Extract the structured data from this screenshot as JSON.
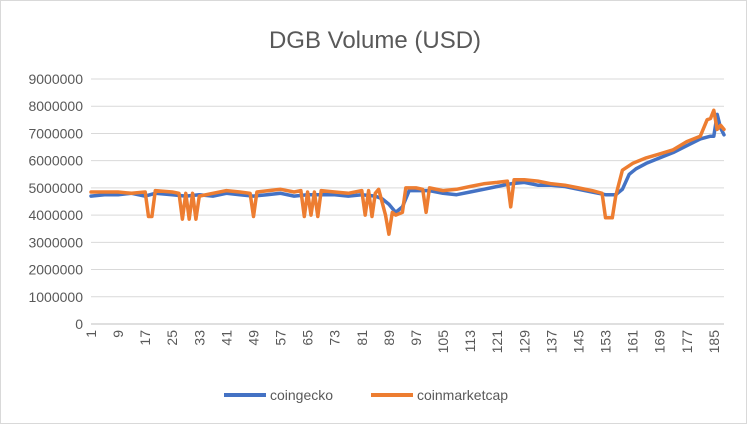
{
  "chart_data": {
    "type": "line",
    "title": "DGB Volume (USD)",
    "xlabel": "",
    "ylabel": "",
    "ylim": [
      0,
      9000000
    ],
    "y_ticks": [
      0,
      1000000,
      2000000,
      3000000,
      4000000,
      5000000,
      6000000,
      7000000,
      8000000,
      9000000
    ],
    "y_tick_labels": [
      "0",
      "1000000",
      "2000000",
      "3000000",
      "4000000",
      "5000000",
      "6000000",
      "7000000",
      "8000000",
      "9000000"
    ],
    "x_range": [
      1,
      188
    ],
    "x_ticks": [
      1,
      9,
      17,
      25,
      33,
      41,
      49,
      57,
      65,
      73,
      81,
      89,
      97,
      105,
      113,
      121,
      129,
      137,
      145,
      153,
      161,
      169,
      177,
      185
    ],
    "x_tick_labels": [
      "1",
      "9",
      "17",
      "25",
      "33",
      "41",
      "49",
      "57",
      "65",
      "73",
      "81",
      "89",
      "97",
      "105",
      "113",
      "121",
      "129",
      "137",
      "145",
      "153",
      "161",
      "169",
      "177",
      "185"
    ],
    "grid": "horizontal",
    "legend_position": "bottom",
    "series": [
      {
        "name": "coingecko",
        "color": "#4472c4",
        "points": [
          [
            1,
            4700000
          ],
          [
            5,
            4750000
          ],
          [
            9,
            4750000
          ],
          [
            13,
            4800000
          ],
          [
            17,
            4700000
          ],
          [
            20,
            4800000
          ],
          [
            25,
            4750000
          ],
          [
            29,
            4700000
          ],
          [
            33,
            4750000
          ],
          [
            37,
            4700000
          ],
          [
            41,
            4800000
          ],
          [
            45,
            4750000
          ],
          [
            49,
            4700000
          ],
          [
            53,
            4750000
          ],
          [
            57,
            4800000
          ],
          [
            61,
            4700000
          ],
          [
            65,
            4750000
          ],
          [
            69,
            4750000
          ],
          [
            73,
            4750000
          ],
          [
            77,
            4700000
          ],
          [
            81,
            4750000
          ],
          [
            85,
            4700000
          ],
          [
            87,
            4600000
          ],
          [
            89,
            4400000
          ],
          [
            91,
            4100000
          ],
          [
            93,
            4300000
          ],
          [
            95,
            4900000
          ],
          [
            97,
            4900000
          ],
          [
            101,
            4900000
          ],
          [
            105,
            4800000
          ],
          [
            109,
            4750000
          ],
          [
            113,
            4850000
          ],
          [
            117,
            4950000
          ],
          [
            121,
            5050000
          ],
          [
            125,
            5150000
          ],
          [
            129,
            5200000
          ],
          [
            133,
            5100000
          ],
          [
            137,
            5100000
          ],
          [
            141,
            5050000
          ],
          [
            145,
            4950000
          ],
          [
            149,
            4850000
          ],
          [
            153,
            4750000
          ],
          [
            156,
            4750000
          ],
          [
            158,
            4950000
          ],
          [
            160,
            5500000
          ],
          [
            162,
            5700000
          ],
          [
            165,
            5900000
          ],
          [
            169,
            6100000
          ],
          [
            173,
            6300000
          ],
          [
            177,
            6550000
          ],
          [
            181,
            6800000
          ],
          [
            184,
            6900000
          ],
          [
            185,
            6900000
          ],
          [
            186,
            7700000
          ],
          [
            187,
            7200000
          ],
          [
            188,
            6950000
          ]
        ]
      },
      {
        "name": "coinmarketcap",
        "color": "#ed7d31",
        "points": [
          [
            1,
            4850000
          ],
          [
            5,
            4850000
          ],
          [
            9,
            4850000
          ],
          [
            13,
            4800000
          ],
          [
            17,
            4850000
          ],
          [
            18,
            3950000
          ],
          [
            19,
            3950000
          ],
          [
            20,
            4900000
          ],
          [
            25,
            4850000
          ],
          [
            27,
            4800000
          ],
          [
            28,
            3850000
          ],
          [
            29,
            4800000
          ],
          [
            30,
            3850000
          ],
          [
            31,
            4800000
          ],
          [
            32,
            3850000
          ],
          [
            33,
            4700000
          ],
          [
            37,
            4800000
          ],
          [
            41,
            4900000
          ],
          [
            45,
            4850000
          ],
          [
            48,
            4800000
          ],
          [
            49,
            3950000
          ],
          [
            50,
            4850000
          ],
          [
            57,
            4950000
          ],
          [
            61,
            4850000
          ],
          [
            63,
            4900000
          ],
          [
            64,
            3950000
          ],
          [
            65,
            4850000
          ],
          [
            66,
            4000000
          ],
          [
            67,
            4850000
          ],
          [
            68,
            3950000
          ],
          [
            69,
            4900000
          ],
          [
            73,
            4850000
          ],
          [
            77,
            4800000
          ],
          [
            81,
            4900000
          ],
          [
            82,
            4000000
          ],
          [
            83,
            4900000
          ],
          [
            84,
            3950000
          ],
          [
            85,
            4800000
          ],
          [
            86,
            4950000
          ],
          [
            88,
            4000000
          ],
          [
            89,
            3300000
          ],
          [
            90,
            4100000
          ],
          [
            91,
            4000000
          ],
          [
            93,
            4100000
          ],
          [
            94,
            5000000
          ],
          [
            97,
            5000000
          ],
          [
            99,
            4950000
          ],
          [
            100,
            4100000
          ],
          [
            101,
            5000000
          ],
          [
            105,
            4900000
          ],
          [
            109,
            4950000
          ],
          [
            113,
            5050000
          ],
          [
            117,
            5150000
          ],
          [
            121,
            5200000
          ],
          [
            124,
            5250000
          ],
          [
            125,
            4300000
          ],
          [
            126,
            5300000
          ],
          [
            129,
            5300000
          ],
          [
            133,
            5250000
          ],
          [
            137,
            5150000
          ],
          [
            141,
            5100000
          ],
          [
            145,
            5000000
          ],
          [
            149,
            4900000
          ],
          [
            152,
            4800000
          ],
          [
            153,
            3900000
          ],
          [
            155,
            3900000
          ],
          [
            156,
            4700000
          ],
          [
            158,
            5650000
          ],
          [
            161,
            5900000
          ],
          [
            165,
            6100000
          ],
          [
            169,
            6250000
          ],
          [
            173,
            6400000
          ],
          [
            177,
            6700000
          ],
          [
            181,
            6900000
          ],
          [
            183,
            7500000
          ],
          [
            184,
            7550000
          ],
          [
            185,
            7850000
          ],
          [
            186,
            7150000
          ],
          [
            187,
            7300000
          ],
          [
            188,
            7150000
          ]
        ]
      }
    ]
  }
}
